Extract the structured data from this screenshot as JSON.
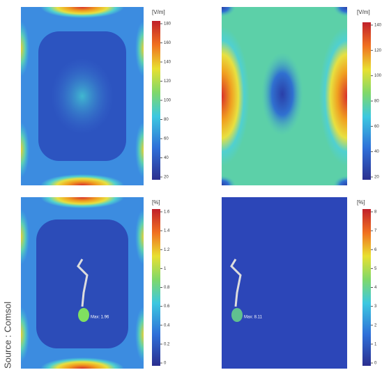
{
  "source": "Source : Comsol",
  "panels": [
    {
      "unit": "[V/m]",
      "ticks": [
        "180",
        "160",
        "140",
        "120",
        "100",
        "80",
        "60",
        "40",
        "20"
      ]
    },
    {
      "unit": "[V/m]",
      "ticks": [
        "140",
        "120",
        "100",
        "80",
        "60",
        "40",
        "20"
      ]
    },
    {
      "unit": "[%]",
      "ticks": [
        "1.6",
        "1.4",
        "1.2",
        "1",
        "0.8",
        "0.6",
        "0.4",
        "0.2",
        "0"
      ],
      "annotation": "Max: 1.96"
    },
    {
      "unit": "[%]",
      "ticks": [
        "8",
        "7",
        "6",
        "5",
        "4",
        "3",
        "2",
        "1",
        "0"
      ],
      "annotation": "Max: 8.11"
    }
  ]
}
